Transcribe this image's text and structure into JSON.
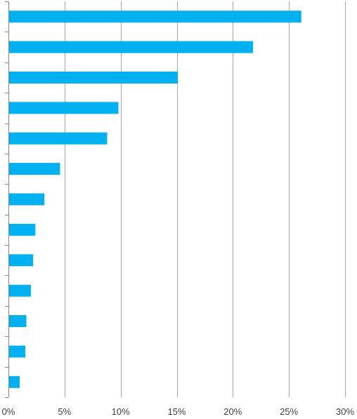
{
  "chart_data": {
    "type": "bar",
    "orientation": "horizontal",
    "categories": [
      "",
      "",
      "",
      "",
      "",
      "",
      "",
      "",
      "",
      "",
      "",
      "",
      ""
    ],
    "values": [
      26.1,
      21.8,
      15.1,
      9.8,
      8.8,
      4.6,
      3.2,
      2.4,
      2.2,
      2.0,
      1.6,
      1.5,
      1.0
    ],
    "xlim": [
      0,
      30
    ],
    "x_ticks": [
      0,
      5,
      10,
      15,
      20,
      25,
      30
    ],
    "x_tick_labels": [
      "0%",
      "5%",
      "10%",
      "15%",
      "20%",
      "25%",
      "30%"
    ],
    "grid": "vertical",
    "legend": "none",
    "title": "",
    "xlabel": "",
    "ylabel": "",
    "bar_color": "#00b0f0",
    "grid_color": "#a6a6a6",
    "axis_color": "#868686"
  }
}
